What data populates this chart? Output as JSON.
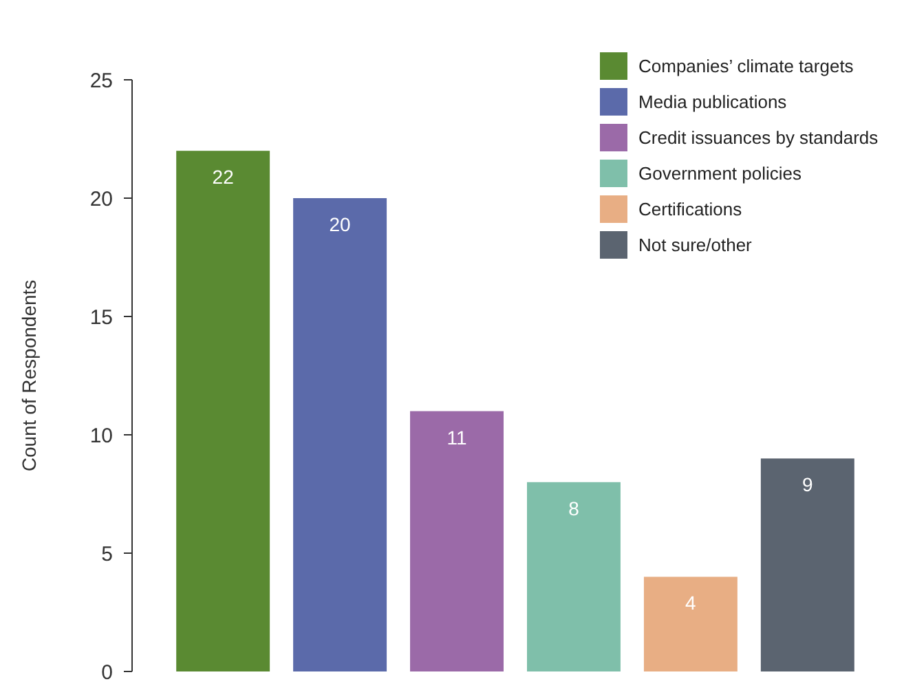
{
  "chart_data": {
    "type": "bar",
    "ylabel": "Count of Respondents",
    "categories": [
      null
    ],
    "series": [
      {
        "name": "Companies’ climate targets",
        "color": "#5a8a32",
        "values": [
          22
        ]
      },
      {
        "name": "Media publications",
        "color": "#5b6aaa",
        "values": [
          20
        ]
      },
      {
        "name": "Credit issuances by standards",
        "color": "#9b6aa8",
        "values": [
          11
        ]
      },
      {
        "name": "Government policies",
        "color": "#7fbfaa",
        "values": [
          8
        ]
      },
      {
        "name": "Certifications",
        "color": "#e8ae84",
        "values": [
          4
        ]
      },
      {
        "name": "Not sure/other",
        "color": "#5b6470",
        "values": [
          9
        ]
      }
    ],
    "ylim": [
      0,
      25
    ],
    "yticks": [
      0,
      5,
      10,
      15,
      20,
      25
    ],
    "data_labels": true,
    "legend": "top right",
    "grid": false
  }
}
